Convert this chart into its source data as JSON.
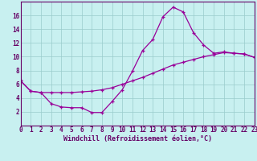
{
  "xlabel": "Windchill (Refroidissement éolien,°C)",
  "bg_color": "#c8f0f0",
  "line_color": "#990099",
  "grid_color": "#99cccc",
  "axis_color": "#660066",
  "spine_color": "#660066",
  "xlim": [
    0,
    23
  ],
  "ylim": [
    0,
    18
  ],
  "xticks": [
    0,
    1,
    2,
    3,
    4,
    5,
    6,
    7,
    8,
    9,
    10,
    11,
    12,
    13,
    14,
    15,
    16,
    17,
    18,
    19,
    20,
    21,
    22,
    23
  ],
  "yticks": [
    2,
    4,
    6,
    8,
    10,
    12,
    14,
    16
  ],
  "line1_x": [
    0,
    1,
    2,
    3,
    4,
    5,
    6,
    7,
    8,
    9,
    10,
    11,
    12,
    13,
    14,
    15,
    16,
    17,
    18,
    19,
    20,
    21,
    22,
    23
  ],
  "line1_y": [
    6.5,
    5.0,
    4.8,
    3.2,
    2.7,
    2.6,
    2.6,
    1.9,
    1.9,
    3.5,
    5.2,
    7.9,
    10.9,
    12.5,
    15.8,
    17.2,
    16.5,
    13.5,
    11.7,
    10.5,
    10.7,
    10.5,
    10.4,
    9.9
  ],
  "line2_x": [
    0,
    1,
    2,
    3,
    4,
    5,
    6,
    7,
    8,
    9,
    10,
    11,
    12,
    13,
    14,
    15,
    16,
    17,
    18,
    19,
    20,
    21,
    22,
    23
  ],
  "line2_y": [
    6.5,
    5.0,
    4.8,
    4.8,
    4.8,
    4.8,
    4.9,
    5.0,
    5.2,
    5.5,
    6.0,
    6.5,
    7.0,
    7.6,
    8.2,
    8.8,
    9.2,
    9.6,
    10.0,
    10.3,
    10.6,
    10.5,
    10.4,
    9.9
  ],
  "tick_fontsize": 5.5,
  "xlabel_fontsize": 6.0
}
